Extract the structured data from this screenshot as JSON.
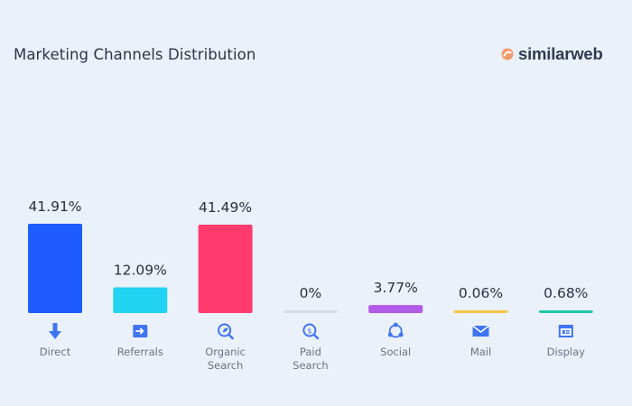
{
  "title": "Marketing Channels Distribution",
  "brand": {
    "name": "similarweb",
    "accent": "#f39c6b"
  },
  "chart_data": {
    "type": "bar",
    "title": "Marketing Channels Distribution",
    "categories": [
      [
        "Direct"
      ],
      [
        "Referrals"
      ],
      [
        "Organic",
        "Search"
      ],
      [
        "Paid",
        "Search"
      ],
      [
        "Social"
      ],
      [
        "Mail"
      ],
      [
        "Display"
      ]
    ],
    "values": [
      41.91,
      12.09,
      41.49,
      0,
      3.77,
      0.06,
      0.68
    ],
    "value_labels": [
      "41.91%",
      "12.09%",
      "41.49%",
      "0%",
      "3.77%",
      "0.06%",
      "0.68%"
    ],
    "colors": [
      "#1f5cff",
      "#22d3f2",
      "#ff3b6e",
      "#d5dbe6",
      "#b15ae8",
      "#f6c445",
      "#21c7a8"
    ],
    "icons": [
      "direct-icon",
      "referrals-icon",
      "organic-search-icon",
      "paid-search-icon",
      "social-icon",
      "mail-icon",
      "display-icon"
    ],
    "ylim": [
      0,
      41.91
    ],
    "grid": false
  }
}
